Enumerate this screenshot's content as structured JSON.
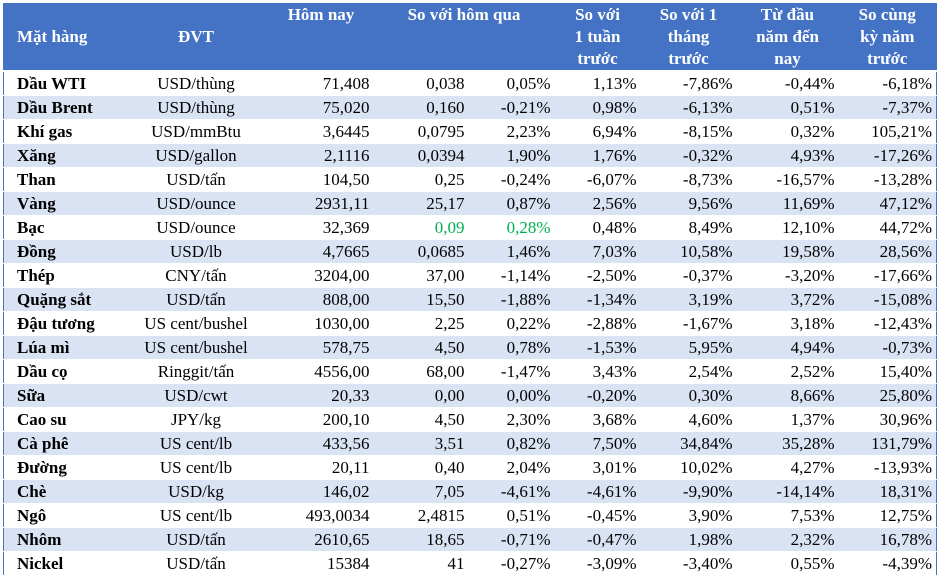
{
  "header": {
    "commodity": "Mặt hàng",
    "unit": "ĐVT",
    "today": "Hôm nay",
    "vs_yesterday": "So với hôm qua",
    "vs_week": [
      "So với",
      "1 tuần",
      "trước"
    ],
    "vs_month": [
      "So với 1",
      "tháng",
      "trước"
    ],
    "ytd": [
      "Từ đầu",
      "năm đến",
      "nay"
    ],
    "yoy": [
      "So cùng",
      "kỳ năm",
      "trước"
    ]
  },
  "rows": [
    {
      "name": "Dầu WTI",
      "unit": "USD/thùng",
      "today": "71,408",
      "chg": "0,038",
      "chg_pct": "0,05%",
      "week": "1,13%",
      "month": "-7,86%",
      "ytd": "-0,44%",
      "yoy": "-6,18%"
    },
    {
      "name": "Dầu Brent",
      "unit": "USD/thùng",
      "today": "75,020",
      "chg": "0,160",
      "chg_pct": "-0,21%",
      "week": "0,98%",
      "month": "-6,13%",
      "ytd": "0,51%",
      "yoy": "-7,37%"
    },
    {
      "name": "Khí gas",
      "unit": "USD/mmBtu",
      "today": "3,6445",
      "chg": "0,0795",
      "chg_pct": "2,23%",
      "week": "6,94%",
      "month": "-8,15%",
      "ytd": "0,32%",
      "yoy": "105,21%"
    },
    {
      "name": "Xăng",
      "unit": "USD/gallon",
      "today": "2,1116",
      "chg": "0,0394",
      "chg_pct": "1,90%",
      "week": "1,76%",
      "month": "-0,32%",
      "ytd": "4,93%",
      "yoy": "-17,26%"
    },
    {
      "name": "Than",
      "unit": "USD/tấn",
      "today": "104,50",
      "chg": "0,25",
      "chg_pct": "-0,24%",
      "week": "-6,07%",
      "month": "-8,73%",
      "ytd": "-16,57%",
      "yoy": "-13,28%"
    },
    {
      "name": "Vàng",
      "unit": "USD/ounce",
      "today": "2931,11",
      "chg": "25,17",
      "chg_pct": "0,87%",
      "week": "2,56%",
      "month": "9,56%",
      "ytd": "11,69%",
      "yoy": "47,12%"
    },
    {
      "name": "Bạc",
      "unit": "USD/ounce",
      "today": "32,369",
      "chg": "0,09",
      "chg_pct": "0,28%",
      "week": "0,48%",
      "month": "8,49%",
      "ytd": "12,10%",
      "yoy": "44,72%",
      "green": true
    },
    {
      "name": "Đồng",
      "unit": "USD/lb",
      "today": "4,7665",
      "chg": "0,0685",
      "chg_pct": "1,46%",
      "week": "7,03%",
      "month": "10,58%",
      "ytd": "19,58%",
      "yoy": "28,56%"
    },
    {
      "name": "Thép",
      "unit": "CNY/tấn",
      "today": "3204,00",
      "chg": "37,00",
      "chg_pct": "-1,14%",
      "week": "-2,50%",
      "month": "-0,37%",
      "ytd": "-3,20%",
      "yoy": "-17,66%"
    },
    {
      "name": "Quặng sắt",
      "unit": "USD/tấn",
      "today": "808,00",
      "chg": "15,50",
      "chg_pct": "-1,88%",
      "week": "-1,34%",
      "month": "3,19%",
      "ytd": "3,72%",
      "yoy": "-15,08%"
    },
    {
      "name": "Đậu tương",
      "unit": "US cent/bushel",
      "today": "1030,00",
      "chg": "2,25",
      "chg_pct": "0,22%",
      "week": "-2,88%",
      "month": "-1,67%",
      "ytd": "3,18%",
      "yoy": "-12,43%"
    },
    {
      "name": "Lúa mì",
      "unit": "US cent/bushel",
      "today": "578,75",
      "chg": "4,50",
      "chg_pct": "0,78%",
      "week": "-1,53%",
      "month": "5,95%",
      "ytd": "4,94%",
      "yoy": "-0,73%"
    },
    {
      "name": "Dầu cọ",
      "unit": "Ringgit/tấn",
      "today": "4556,00",
      "chg": "68,00",
      "chg_pct": "-1,47%",
      "week": "3,43%",
      "month": "2,54%",
      "ytd": "2,52%",
      "yoy": "15,40%"
    },
    {
      "name": "Sữa",
      "unit": "USD/cwt",
      "today": "20,33",
      "chg": "0,00",
      "chg_pct": "0,00%",
      "week": "-0,20%",
      "month": "0,30%",
      "ytd": "8,66%",
      "yoy": "25,80%"
    },
    {
      "name": "Cao su",
      "unit": "JPY/kg",
      "today": "200,10",
      "chg": "4,50",
      "chg_pct": "2,30%",
      "week": "3,68%",
      "month": "4,60%",
      "ytd": "1,37%",
      "yoy": "30,96%"
    },
    {
      "name": "Cà phê",
      "unit": "US cent/lb",
      "today": "433,56",
      "chg": "3,51",
      "chg_pct": "0,82%",
      "week": "7,50%",
      "month": "34,84%",
      "ytd": "35,28%",
      "yoy": "131,79%"
    },
    {
      "name": "Đường",
      "unit": "US cent/lb",
      "today": "20,11",
      "chg": "0,40",
      "chg_pct": "2,04%",
      "week": "3,01%",
      "month": "10,02%",
      "ytd": "4,27%",
      "yoy": "-13,93%"
    },
    {
      "name": "Chè",
      "unit": "USD/kg",
      "today": "146,02",
      "chg": "7,05",
      "chg_pct": "-4,61%",
      "week": "-4,61%",
      "month": "-9,90%",
      "ytd": "-14,14%",
      "yoy": "18,31%"
    },
    {
      "name": "Ngô",
      "unit": "US cent/lb",
      "today": "493,0034",
      "chg": "2,4815",
      "chg_pct": "0,51%",
      "week": "-0,45%",
      "month": "3,90%",
      "ytd": "7,53%",
      "yoy": "12,75%"
    },
    {
      "name": "Nhôm",
      "unit": "USD/tấn",
      "today": "2610,65",
      "chg": "18,65",
      "chg_pct": "-0,71%",
      "week": "-0,47%",
      "month": "1,98%",
      "ytd": "2,32%",
      "yoy": "16,78%"
    },
    {
      "name": "Nickel",
      "unit": "USD/tấn",
      "today": "15384",
      "chg": "41",
      "chg_pct": "-0,27%",
      "week": "-3,09%",
      "month": "-3,40%",
      "ytd": "0,55%",
      "yoy": "-4,39%"
    }
  ],
  "colors": {
    "header_bg": "#4472c4",
    "stripe": "#dae3f3",
    "green_text": "#00b050"
  }
}
